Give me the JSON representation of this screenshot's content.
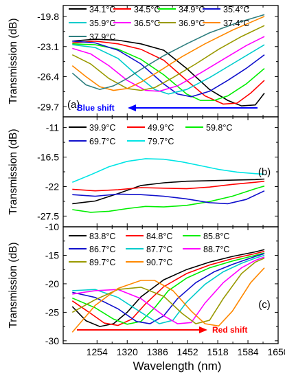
{
  "figure": {
    "ylabel": "Transmission (dB)",
    "xlabel": "Wavelength (nm)",
    "xticks": [
      1254,
      1320,
      1386,
      1452,
      1518,
      1584,
      1650
    ]
  },
  "chart_data": [
    {
      "panel": "(a)",
      "type": "line",
      "xlim": [
        1180,
        1650
      ],
      "ylim": [
        -30.8,
        -18.6
      ],
      "yticks": [
        -19.8,
        -23.1,
        -26.4,
        -29.7
      ],
      "annotation": {
        "text": "Blue shift",
        "color": "#0000ff",
        "arrow": "left"
      },
      "legend_cols": 4,
      "series": [
        {
          "name": "34.1°C",
          "color": "#000000",
          "x": [
            1200,
            1250,
            1300,
            1350,
            1400,
            1450,
            1500,
            1540,
            1570,
            1600,
            1620
          ],
          "y": [
            -22.5,
            -22.3,
            -22.4,
            -22.8,
            -23.5,
            -25.5,
            -27.8,
            -29.0,
            -29.6,
            -29.5,
            -28.2
          ]
        },
        {
          "name": "34.5°C",
          "color": "#ff0000",
          "x": [
            1200,
            1250,
            1300,
            1350,
            1400,
            1450,
            1490,
            1530,
            1560,
            1590,
            1620
          ],
          "y": [
            -22.7,
            -22.5,
            -22.8,
            -23.4,
            -24.6,
            -26.8,
            -28.5,
            -29.4,
            -29.3,
            -28.2,
            -26.8
          ]
        },
        {
          "name": "34.9°C",
          "color": "#00ee00",
          "x": [
            1200,
            1250,
            1300,
            1350,
            1400,
            1450,
            1480,
            1510,
            1540,
            1580,
            1620
          ],
          "y": [
            -22.8,
            -22.9,
            -23.4,
            -24.5,
            -26.2,
            -28.3,
            -29.0,
            -29.0,
            -28.5,
            -27.2,
            -25.5
          ]
        },
        {
          "name": "35.4°C",
          "color": "#1010cc",
          "x": [
            1200,
            1250,
            1300,
            1350,
            1400,
            1430,
            1460,
            1500,
            1540,
            1580,
            1620
          ],
          "y": [
            -22.5,
            -22.7,
            -23.5,
            -25.0,
            -27.2,
            -28.3,
            -28.6,
            -28.0,
            -26.8,
            -25.5,
            -24.0
          ]
        },
        {
          "name": "35.9°C",
          "color": "#00cccc",
          "x": [
            1200,
            1250,
            1300,
            1340,
            1380,
            1410,
            1450,
            1500,
            1550,
            1600,
            1620
          ],
          "y": [
            -22.9,
            -23.2,
            -24.4,
            -26.2,
            -27.8,
            -28.3,
            -27.8,
            -26.5,
            -25.0,
            -23.5,
            -22.9
          ]
        },
        {
          "name": "36.5°C",
          "color": "#ff00ff",
          "x": [
            1200,
            1240,
            1280,
            1320,
            1360,
            1390,
            1430,
            1480,
            1530,
            1580,
            1620
          ],
          "y": [
            -23.3,
            -23.9,
            -25.2,
            -26.8,
            -27.9,
            -28.0,
            -27.4,
            -26.0,
            -24.5,
            -23.0,
            -22.0
          ]
        },
        {
          "name": "36.9°C",
          "color": "#999900",
          "x": [
            1200,
            1240,
            1280,
            1320,
            1350,
            1380,
            1420,
            1470,
            1520,
            1570,
            1620
          ],
          "y": [
            -24.0,
            -25.0,
            -26.6,
            -27.7,
            -27.9,
            -27.6,
            -26.5,
            -25.0,
            -23.4,
            -22.0,
            -20.8
          ]
        },
        {
          "name": "37.4°C",
          "color": "#ff8800",
          "x": [
            1200,
            1230,
            1260,
            1290,
            1320,
            1350,
            1390,
            1440,
            1490,
            1550,
            1620
          ],
          "y": [
            -25.2,
            -26.4,
            -27.5,
            -27.9,
            -27.7,
            -27.0,
            -25.8,
            -24.2,
            -22.8,
            -21.3,
            -19.8
          ]
        },
        {
          "name": "37.9°C",
          "color": "#2f7f7f",
          "x": [
            1200,
            1230,
            1260,
            1290,
            1320,
            1350,
            1400,
            1450,
            1500,
            1560,
            1620
          ],
          "y": [
            -26.0,
            -27.3,
            -27.8,
            -27.4,
            -26.6,
            -25.6,
            -24.1,
            -22.8,
            -21.6,
            -20.5,
            -19.6
          ]
        }
      ]
    },
    {
      "panel": "(b)",
      "type": "line",
      "xlim": [
        1180,
        1650
      ],
      "ylim": [
        -29.5,
        -9.0
      ],
      "yticks": [
        -11.0,
        -16.5,
        -22.0,
        -27.5
      ],
      "legend_cols": 3,
      "series": [
        {
          "name": "39.9°C",
          "color": "#000000",
          "x": [
            1200,
            1250,
            1300,
            1350,
            1400,
            1450,
            1500,
            1550,
            1600,
            1620
          ],
          "y": [
            -25.2,
            -24.7,
            -23.3,
            -21.8,
            -21.3,
            -21.0,
            -20.9,
            -20.8,
            -20.7,
            -20.6
          ]
        },
        {
          "name": "49.9°C",
          "color": "#ff0000",
          "x": [
            1200,
            1250,
            1300,
            1350,
            1400,
            1450,
            1500,
            1550,
            1600,
            1620
          ],
          "y": [
            -22.5,
            -22.8,
            -22.6,
            -22.2,
            -22.3,
            -22.4,
            -22.1,
            -21.6,
            -21.2,
            -21.0
          ]
        },
        {
          "name": "59.8°C",
          "color": "#00ee00",
          "x": [
            1200,
            1240,
            1280,
            1320,
            1360,
            1400,
            1450,
            1500,
            1550,
            1600,
            1620
          ],
          "y": [
            -26.3,
            -26.8,
            -26.6,
            -26.1,
            -25.7,
            -25.8,
            -25.5,
            -24.8,
            -23.8,
            -22.4,
            -21.9
          ]
        },
        {
          "name": "69.7°C",
          "color": "#1010cc",
          "x": [
            1200,
            1250,
            1300,
            1350,
            1400,
            1450,
            1500,
            1540,
            1580,
            1620
          ],
          "y": [
            -23.5,
            -23.8,
            -23.4,
            -23.5,
            -23.8,
            -24.3,
            -25.0,
            -25.2,
            -24.4,
            -22.8
          ]
        },
        {
          "name": "79.7°C",
          "color": "#00e5e5",
          "x": [
            1200,
            1240,
            1280,
            1320,
            1360,
            1400,
            1440,
            1480,
            1520,
            1560,
            1600,
            1620
          ],
          "y": [
            -21.2,
            -19.8,
            -18.3,
            -17.3,
            -16.8,
            -16.9,
            -17.4,
            -18.1,
            -18.8,
            -19.3,
            -19.6,
            -19.7
          ]
        }
      ]
    },
    {
      "panel": "(c)",
      "type": "line",
      "xlim": [
        1180,
        1650
      ],
      "ylim": [
        -30.5,
        -10.0
      ],
      "yticks": [
        -10,
        -15,
        -20,
        -25,
        -30
      ],
      "annotation": {
        "text": "Red shift",
        "color": "#ff0000",
        "arrow": "right"
      },
      "legend_cols": 3,
      "series": [
        {
          "name": "83.8°C",
          "color": "#000000",
          "x": [
            1200,
            1230,
            1260,
            1290,
            1320,
            1350,
            1400,
            1450,
            1500,
            1550,
            1600,
            1620
          ],
          "y": [
            -24.0,
            -26.5,
            -27.5,
            -27.0,
            -25.0,
            -22.3,
            -19.3,
            -17.5,
            -16.2,
            -15.2,
            -14.4,
            -14.0
          ]
        },
        {
          "name": "84.8°C",
          "color": "#ff0000",
          "x": [
            1200,
            1240,
            1270,
            1300,
            1330,
            1360,
            1400,
            1450,
            1500,
            1550,
            1600,
            1620
          ],
          "y": [
            -23.0,
            -25.2,
            -26.9,
            -27.3,
            -26.2,
            -23.5,
            -20.5,
            -18.2,
            -16.7,
            -15.6,
            -14.7,
            -14.3
          ]
        },
        {
          "name": "85.8°C",
          "color": "#00ee00",
          "x": [
            1200,
            1250,
            1290,
            1320,
            1350,
            1380,
            1410,
            1450,
            1500,
            1550,
            1600,
            1620
          ],
          "y": [
            -22.5,
            -24.2,
            -26.2,
            -27.1,
            -26.6,
            -24.2,
            -21.2,
            -19.0,
            -17.2,
            -16.0,
            -15.0,
            -14.6
          ]
        },
        {
          "name": "86.7°C",
          "color": "#1010cc",
          "x": [
            1200,
            1250,
            1300,
            1340,
            1370,
            1400,
            1430,
            1470,
            1510,
            1550,
            1600,
            1620
          ],
          "y": [
            -21.5,
            -22.4,
            -24.4,
            -26.6,
            -27.0,
            -25.6,
            -22.6,
            -19.8,
            -17.9,
            -16.6,
            -15.2,
            -14.7
          ]
        },
        {
          "name": "87.7°C",
          "color": "#00cccc",
          "x": [
            1200,
            1250,
            1300,
            1350,
            1390,
            1420,
            1450,
            1490,
            1530,
            1570,
            1600,
            1620
          ],
          "y": [
            -21.2,
            -21.0,
            -22.4,
            -25.0,
            -27.0,
            -26.4,
            -23.2,
            -20.1,
            -17.9,
            -16.4,
            -15.5,
            -15.0
          ]
        },
        {
          "name": "88.7°C",
          "color": "#ff00ff",
          "x": [
            1200,
            1250,
            1300,
            1350,
            1400,
            1430,
            1460,
            1490,
            1530,
            1570,
            1600,
            1620
          ],
          "y": [
            -21.8,
            -21.2,
            -21.0,
            -22.6,
            -25.6,
            -27.0,
            -26.8,
            -23.4,
            -19.8,
            -17.2,
            -15.9,
            -15.3
          ]
        },
        {
          "name": "89.7°C",
          "color": "#999900",
          "x": [
            1200,
            1250,
            1300,
            1350,
            1400,
            1440,
            1470,
            1500,
            1530,
            1570,
            1600,
            1620
          ],
          "y": [
            -25.0,
            -22.8,
            -21.0,
            -20.6,
            -22.2,
            -25.2,
            -27.0,
            -26.4,
            -22.6,
            -18.2,
            -16.2,
            -15.5
          ]
        },
        {
          "name": "90.7°C",
          "color": "#ff8800",
          "x": [
            1200,
            1250,
            1300,
            1350,
            1380,
            1420,
            1460,
            1490,
            1520,
            1550,
            1590,
            1620
          ],
          "y": [
            -28.5,
            -23.8,
            -20.8,
            -19.4,
            -19.4,
            -21.2,
            -24.8,
            -27.0,
            -27.4,
            -24.8,
            -19.8,
            -17.2
          ]
        }
      ]
    }
  ]
}
